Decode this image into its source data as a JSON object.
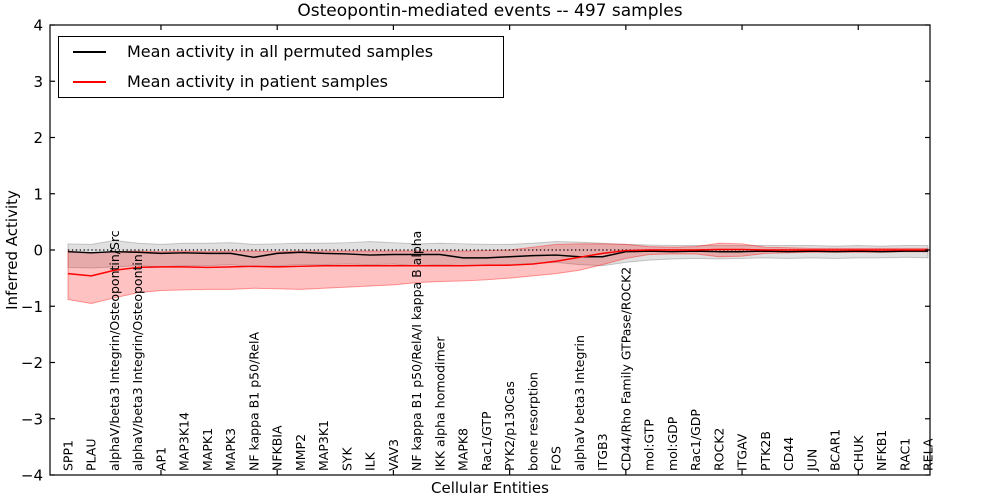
{
  "figure": {
    "title": "Osteopontin-mediated events -- 497 samples",
    "background": "#ffffff"
  },
  "chart_data": {
    "type": "line",
    "title": "Osteopontin-mediated events -- 497 samples",
    "xlabel": "Cellular Entities",
    "ylabel": "Inferred Activity",
    "ylim": [
      -4,
      4
    ],
    "yticks": [
      -4,
      -3,
      -2,
      -1,
      0,
      1,
      2,
      3,
      4
    ],
    "xtick_every": 5,
    "grid": false,
    "legend_position": "upper left",
    "zero_line": {
      "y": 0,
      "style": "dotted",
      "color": "#000000"
    },
    "categories": [
      "SPP1",
      "PLAU",
      "alphaV/beta3 Integrin/Osteopontin/Src",
      "alphaV/beta3 Integrin/Osteopontin",
      "AP1",
      "MAP3K14",
      "MAPK1",
      "MAPK3",
      "NF kappa B1 p50/RelA",
      "NFKBIA",
      "MMP2",
      "MAP3K1",
      "SYK",
      "ILK",
      "VAV3",
      "NF kappa B1 p50/RelA/I kappa B alpha",
      "IKK alpha homodimer",
      "MAPK8",
      "Rac1/GTP",
      "PYK2/p130Cas",
      "bone resorption",
      "FOS",
      "alphaV beta3 Integrin",
      "ITGB3",
      "CD44/Rho Family GTPase/ROCK2",
      "mol:GTP",
      "mol:GDP",
      "Rac1/GDP",
      "ROCK2",
      "ITGAV",
      "PTK2B",
      "CD44",
      "JUN",
      "BCAR1",
      "CHUK",
      "NFKB1",
      "RAC1",
      "RELA"
    ],
    "series": [
      {
        "name": "Mean activity in all permuted samples",
        "color": "#000000",
        "line_width": 1.5,
        "band_color": "#000000",
        "band_opacity": 0.12,
        "values": [
          -0.03,
          -0.05,
          -0.03,
          -0.04,
          -0.06,
          -0.05,
          -0.06,
          -0.06,
          -0.13,
          -0.06,
          -0.04,
          -0.06,
          -0.07,
          -0.09,
          -0.08,
          -0.08,
          -0.08,
          -0.14,
          -0.14,
          -0.12,
          -0.1,
          -0.09,
          -0.12,
          -0.12,
          -0.03,
          -0.02,
          -0.03,
          -0.02,
          -0.03,
          -0.03,
          -0.02,
          -0.03,
          -0.02,
          -0.03,
          -0.02,
          -0.03,
          -0.02,
          -0.02
        ],
        "band_high": [
          0.11,
          0.1,
          0.17,
          0.12,
          0.1,
          0.12,
          0.12,
          0.13,
          0.1,
          0.11,
          0.12,
          0.12,
          0.13,
          0.15,
          0.13,
          0.11,
          0.12,
          0.11,
          0.1,
          0.1,
          0.12,
          0.15,
          0.14,
          0.12,
          0.1,
          0.09,
          0.08,
          0.08,
          0.08,
          0.08,
          0.08,
          0.08,
          0.08,
          0.07,
          0.08,
          0.07,
          0.08,
          0.08
        ],
        "band_low": [
          -0.31,
          -0.32,
          -0.3,
          -0.28,
          -0.3,
          -0.28,
          -0.28,
          -0.26,
          -0.3,
          -0.28,
          -0.26,
          -0.26,
          -0.25,
          -0.26,
          -0.25,
          -0.28,
          -0.26,
          -0.28,
          -0.28,
          -0.26,
          -0.24,
          -0.22,
          -0.26,
          -0.28,
          -0.22,
          -0.18,
          -0.16,
          -0.15,
          -0.16,
          -0.15,
          -0.14,
          -0.15,
          -0.14,
          -0.15,
          -0.14,
          -0.14,
          -0.13,
          -0.14
        ]
      },
      {
        "name": "Mean activity in patient samples",
        "color": "#ff0000",
        "line_width": 1.5,
        "band_color": "#ff0000",
        "band_opacity": 0.24,
        "values": [
          -0.42,
          -0.46,
          -0.36,
          -0.31,
          -0.3,
          -0.3,
          -0.31,
          -0.3,
          -0.29,
          -0.3,
          -0.29,
          -0.28,
          -0.28,
          -0.28,
          -0.28,
          -0.28,
          -0.28,
          -0.28,
          -0.27,
          -0.27,
          -0.25,
          -0.2,
          -0.13,
          -0.06,
          -0.01,
          0.0,
          0.0,
          0.0,
          0.01,
          0.01,
          0.0,
          0.0,
          0.0,
          0.0,
          0.0,
          0.0,
          0.0,
          0.0
        ],
        "band_high": [
          -0.02,
          -0.05,
          -0.03,
          -0.02,
          -0.03,
          -0.02,
          -0.03,
          -0.02,
          -0.02,
          -0.03,
          -0.02,
          -0.02,
          -0.02,
          -0.02,
          -0.02,
          -0.02,
          -0.02,
          -0.02,
          -0.01,
          0.0,
          0.05,
          0.1,
          0.11,
          0.11,
          0.1,
          0.06,
          0.05,
          0.06,
          0.12,
          0.11,
          0.05,
          0.04,
          0.03,
          0.03,
          0.03,
          0.03,
          0.03,
          0.03
        ],
        "band_low": [
          -0.88,
          -0.95,
          -0.85,
          -0.76,
          -0.72,
          -0.71,
          -0.7,
          -0.7,
          -0.68,
          -0.69,
          -0.7,
          -0.68,
          -0.66,
          -0.64,
          -0.62,
          -0.58,
          -0.56,
          -0.55,
          -0.53,
          -0.5,
          -0.46,
          -0.42,
          -0.36,
          -0.26,
          -0.15,
          -0.08,
          -0.07,
          -0.07,
          -0.12,
          -0.11,
          -0.06,
          -0.05,
          -0.04,
          -0.04,
          -0.04,
          -0.04,
          -0.03,
          -0.03
        ]
      }
    ]
  }
}
